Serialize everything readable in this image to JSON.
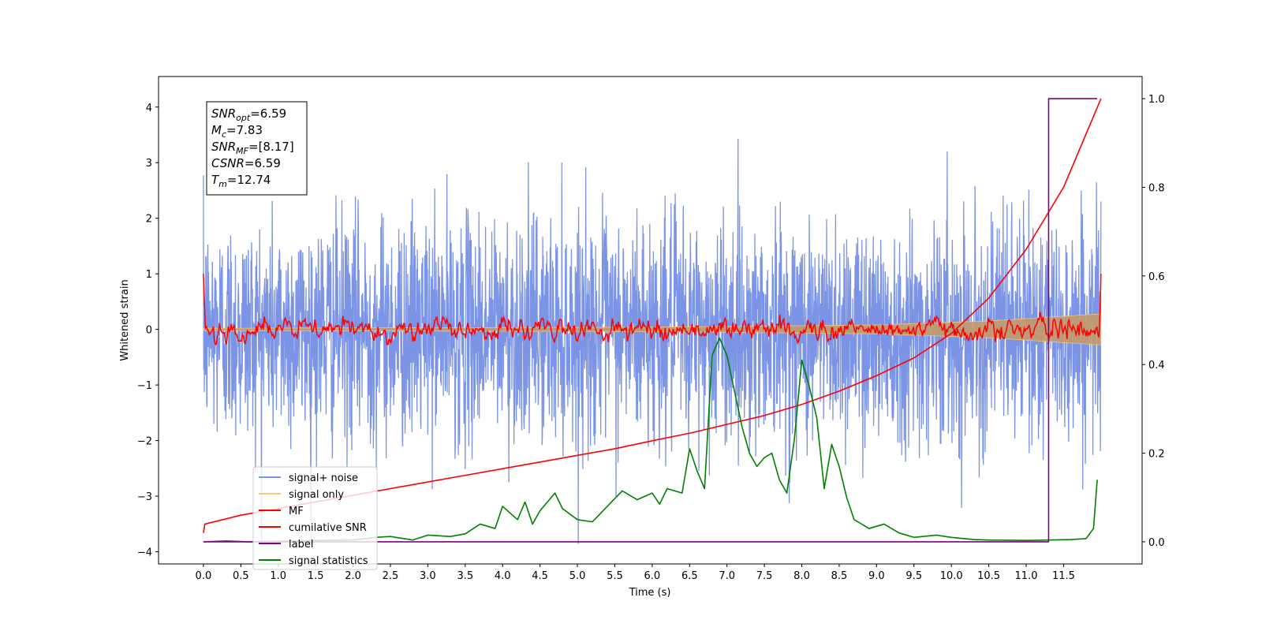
{
  "chart_data": {
    "type": "line",
    "xlabel": "Time (s)",
    "ylabel": "Whitened strain",
    "xlim": [
      -0.6,
      12.55
    ],
    "ylim": [
      -4.22,
      4.55
    ],
    "y2lim": [
      -0.05,
      1.05
    ],
    "x_ticks": [
      "0.0",
      "0.5",
      "1.0",
      "1.5",
      "2.0",
      "2.5",
      "3.0",
      "3.5",
      "4.0",
      "4.5",
      "5.0",
      "5.5",
      "6.0",
      "6.5",
      "7.0",
      "7.5",
      "8.0",
      "8.5",
      "9.0",
      "9.5",
      "10.0",
      "10.5",
      "11.0",
      "11.5"
    ],
    "y_ticks": [
      "4",
      "3",
      "2",
      "1",
      "0",
      "−1",
      "−2",
      "−3",
      "−4"
    ],
    "y2_ticks": [
      "1.0",
      "0.8",
      "0.6",
      "0.4",
      "0.2",
      "0.0"
    ],
    "annotation": [
      {
        "sym": "SNR",
        "sub": "opt",
        "rest": "=6.59"
      },
      {
        "sym": "M",
        "sub": "c",
        "rest": "=7.83"
      },
      {
        "sym": "SNR",
        "sub": "MF",
        "rest": "=[8.17]"
      },
      {
        "sym": "CSNR",
        "sub": "",
        "rest": "=6.59"
      },
      {
        "sym": "T",
        "sub": "m",
        "rest": "=12.74"
      }
    ],
    "legend": {
      "placement": "lower-left",
      "entries": [
        {
          "label": "signal+ noise",
          "color": "#7b94e6"
        },
        {
          "label": "signal only",
          "color": "#ffc870"
        },
        {
          "label": "MF",
          "color": "#ff0000"
        },
        {
          "label": "cumilative SNR",
          "color": "#ff0000"
        },
        {
          "label": "label",
          "color": "#800080"
        },
        {
          "label": "signal statistics",
          "color": "#008000"
        }
      ]
    },
    "series": [
      {
        "name": "signal+ noise",
        "axis": "left",
        "style": "gaussian-noise",
        "x_range": [
          0.0,
          12.0
        ],
        "std": 1.0,
        "approx_range": [
          -3.9,
          4.2
        ]
      },
      {
        "name": "signal only",
        "axis": "left",
        "style": "chirp-envelope",
        "x_range": [
          0.0,
          12.0
        ],
        "amplitude": [
          [
            0.0,
            0.02
          ],
          [
            6.0,
            0.04
          ],
          [
            9.0,
            0.08
          ],
          [
            10.5,
            0.15
          ],
          [
            12.0,
            0.28
          ]
        ]
      },
      {
        "name": "MF",
        "axis": "left",
        "style": "jagged",
        "x_range": [
          0.0,
          12.0
        ],
        "start_value": 1.0,
        "end_value": 1.0,
        "std": 0.1
      },
      {
        "name": "cumilative SNR",
        "axis": "right",
        "x": [
          0.0,
          0.02,
          0.5,
          1.0,
          1.5,
          2.0,
          2.5,
          3.0,
          3.5,
          4.0,
          4.5,
          5.0,
          5.5,
          6.0,
          6.5,
          7.0,
          7.5,
          8.0,
          8.5,
          9.0,
          9.5,
          10.0,
          10.5,
          11.0,
          11.5,
          12.0
        ],
        "y": [
          0.02,
          0.04,
          0.06,
          0.075,
          0.09,
          0.105,
          0.12,
          0.135,
          0.15,
          0.165,
          0.18,
          0.195,
          0.21,
          0.228,
          0.245,
          0.265,
          0.285,
          0.31,
          0.34,
          0.375,
          0.415,
          0.47,
          0.55,
          0.66,
          0.8,
          1.0
        ]
      },
      {
        "name": "label",
        "axis": "right",
        "x": [
          0.0,
          11.25,
          11.3,
          11.3,
          11.95
        ],
        "y": [
          0.0,
          0.0,
          0.0,
          1.0,
          1.0
        ]
      },
      {
        "name": "signal statistics",
        "axis": "right",
        "x": [
          0.0,
          0.3,
          0.6,
          1.0,
          1.5,
          2.0,
          2.3,
          2.5,
          2.8,
          3.0,
          3.3,
          3.5,
          3.7,
          3.9,
          4.0,
          4.2,
          4.3,
          4.4,
          4.5,
          4.7,
          4.8,
          5.0,
          5.2,
          5.4,
          5.6,
          5.8,
          6.0,
          6.1,
          6.2,
          6.4,
          6.5,
          6.6,
          6.7,
          6.8,
          6.9,
          7.0,
          7.1,
          7.2,
          7.3,
          7.4,
          7.5,
          7.6,
          7.7,
          7.8,
          7.9,
          8.0,
          8.1,
          8.2,
          8.3,
          8.4,
          8.5,
          8.6,
          8.7,
          8.9,
          9.1,
          9.3,
          9.5,
          9.8,
          10.0,
          10.3,
          10.5,
          11.0,
          11.3,
          11.6,
          11.8,
          11.9,
          11.95
        ],
        "y": [
          0.0,
          0.002,
          0.0,
          0.001,
          0.003,
          0.004,
          0.01,
          0.012,
          0.004,
          0.015,
          0.012,
          0.018,
          0.04,
          0.03,
          0.08,
          0.05,
          0.09,
          0.04,
          0.07,
          0.11,
          0.075,
          0.05,
          0.045,
          0.08,
          0.115,
          0.095,
          0.11,
          0.085,
          0.12,
          0.11,
          0.21,
          0.16,
          0.12,
          0.42,
          0.46,
          0.42,
          0.34,
          0.26,
          0.2,
          0.17,
          0.19,
          0.2,
          0.14,
          0.11,
          0.23,
          0.41,
          0.35,
          0.28,
          0.12,
          0.22,
          0.17,
          0.1,
          0.05,
          0.03,
          0.04,
          0.02,
          0.01,
          0.015,
          0.01,
          0.005,
          0.004,
          0.003,
          0.004,
          0.005,
          0.007,
          0.03,
          0.14
        ]
      }
    ]
  }
}
